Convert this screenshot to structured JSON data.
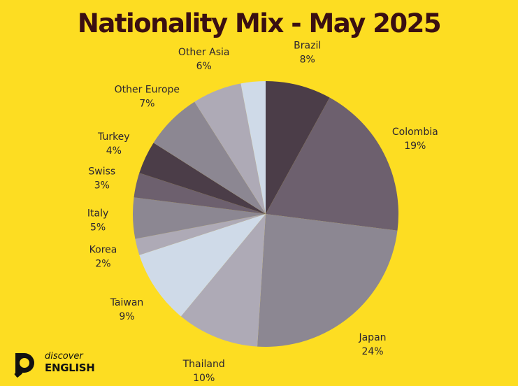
{
  "chart_data": {
    "type": "pie",
    "title": "Nationality Mix - May 2025",
    "unit": "%",
    "slices": [
      {
        "label": "Brazil",
        "value": 8,
        "color": "#4B3D48"
      },
      {
        "label": "Colombia",
        "value": 19,
        "color": "#6D606E"
      },
      {
        "label": "Japan",
        "value": 24,
        "color": "#8C8792"
      },
      {
        "label": "Thailand",
        "value": 10,
        "color": "#AEAAB6"
      },
      {
        "label": "Taiwan",
        "value": 9,
        "color": "#CFDAE8"
      },
      {
        "label": "Korea",
        "value": 2,
        "color": "#AEAAB6"
      },
      {
        "label": "Italy",
        "value": 5,
        "color": "#8C8792"
      },
      {
        "label": "Swiss",
        "value": 3,
        "color": "#6D606E"
      },
      {
        "label": "Turkey",
        "value": 4,
        "color": "#4B3D48"
      },
      {
        "label": "Other Europe",
        "value": 7,
        "color": "#8C8792"
      },
      {
        "label": "Other Asia",
        "value": 6,
        "color": "#AEAAB6"
      },
      {
        "label": "",
        "value": 3,
        "color": "#CFDAE8"
      }
    ]
  },
  "background_color": "#FDDD22",
  "title_color": "#3A0F12",
  "logo": {
    "line1": "discover",
    "line2": "ENGLISH"
  }
}
